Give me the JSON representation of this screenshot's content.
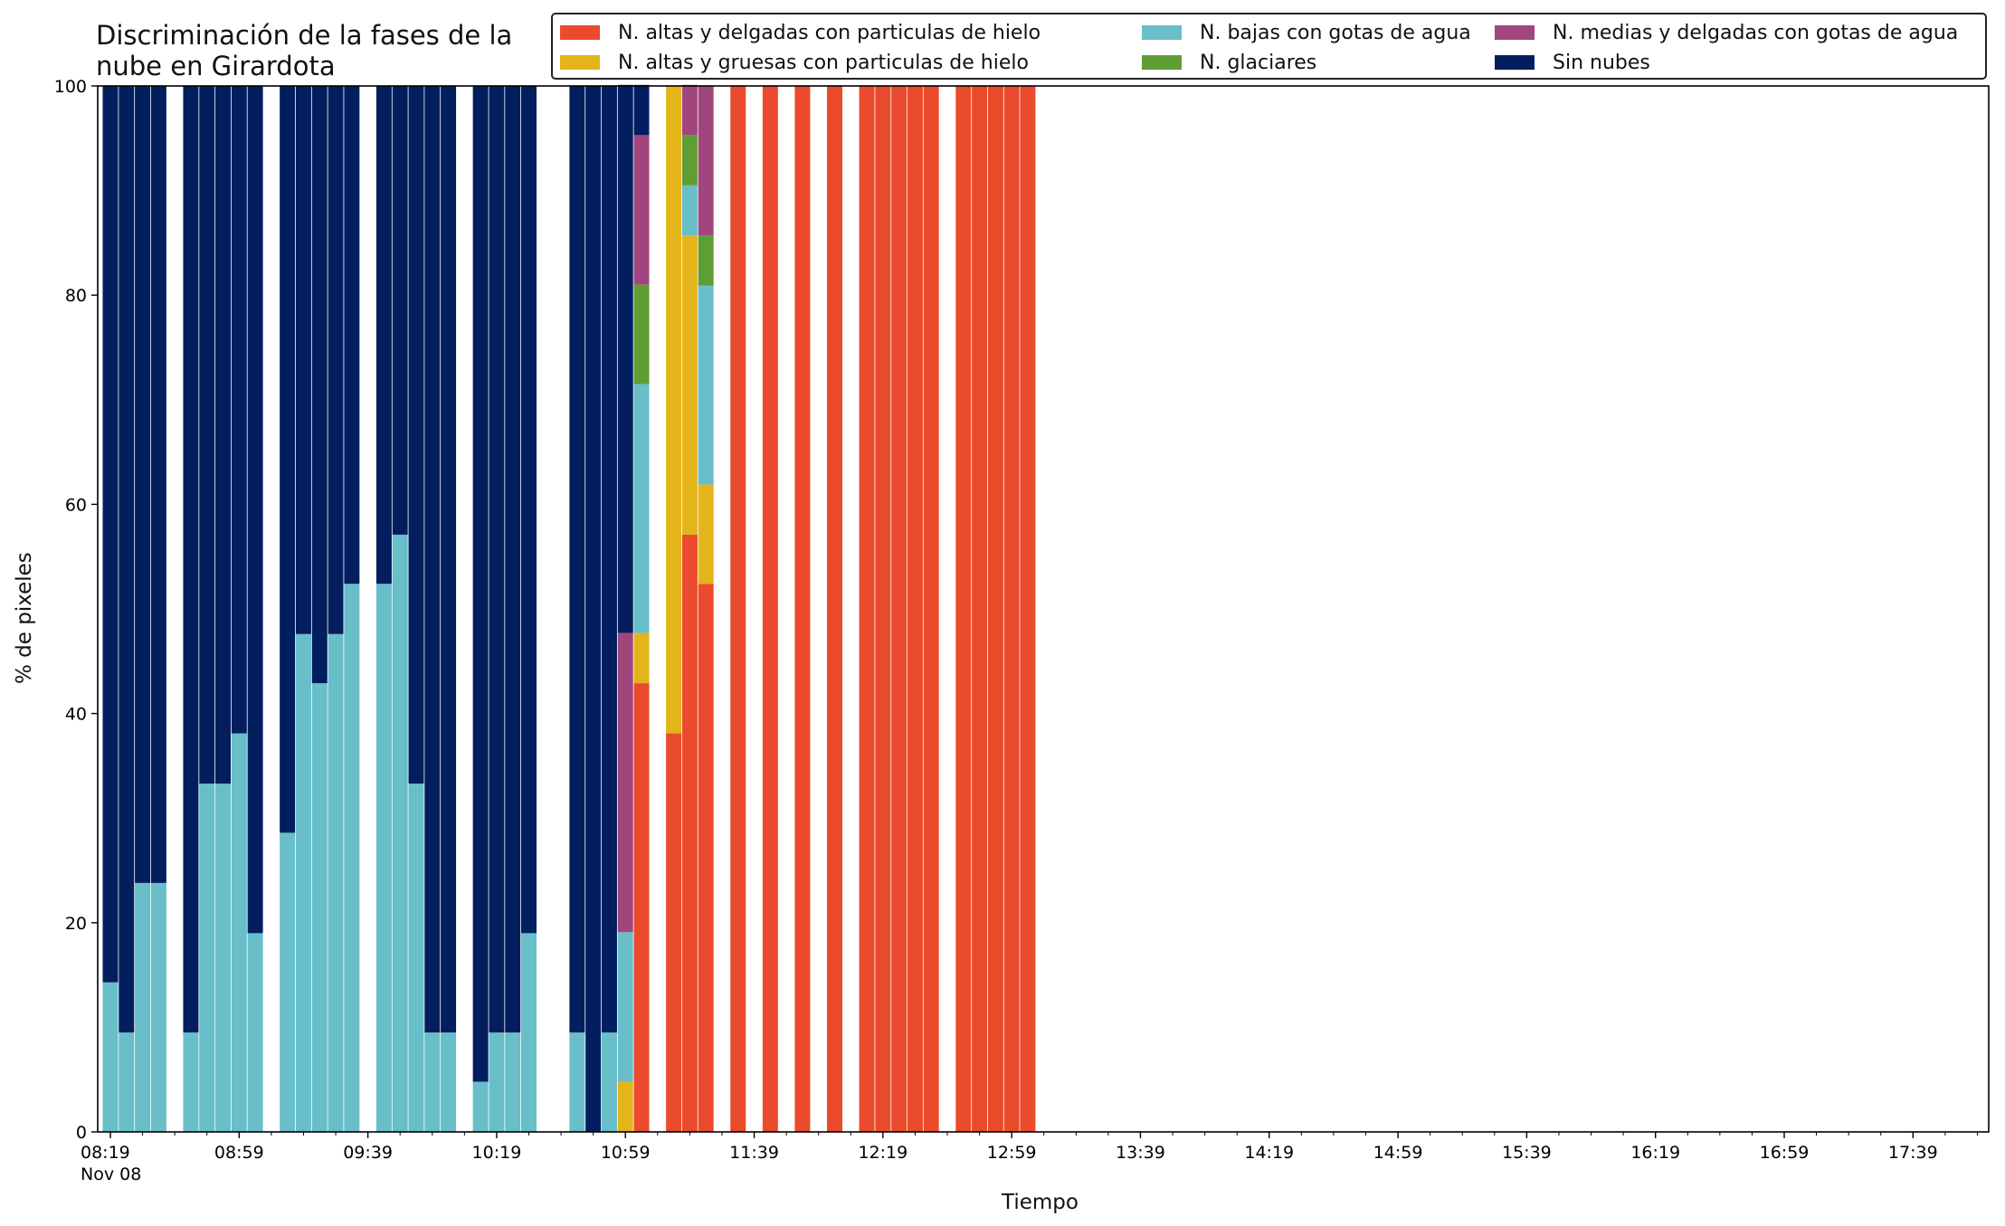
{
  "title_lines": [
    "Discriminación de la fases de la",
    "nube en Girardota"
  ],
  "colors": {
    "altas_delgadas_hielo": "#EA4B2C",
    "altas_gruesas_hielo": "#E4B41B",
    "bajas_gotas": "#68BEC9",
    "glaciares": "#5E9E32",
    "medias_delgadas_gotas": "#A0467C",
    "sin_nubes": "#031E5E"
  },
  "chart_data": {
    "type": "bar",
    "stacked": true,
    "title": "Discriminación de la fases de la nube en Girardota",
    "xlabel": "Tiempo",
    "ylabel": "% de pixeles",
    "ylim": [
      0,
      100
    ],
    "yticks": [
      0,
      20,
      40,
      60,
      80,
      100
    ],
    "legend_position": "top-right",
    "x_ticks": [
      "08:19\nNov 08",
      "08:59",
      "09:39",
      "10:19",
      "10:59",
      "11:39",
      "12:19",
      "12:59",
      "13:39",
      "14:19",
      "14:59",
      "15:39",
      "16:19",
      "16:59",
      "17:39"
    ],
    "x_range": [
      "2023-11-08 08:19",
      "2023-11-08 17:59"
    ],
    "series": [
      {
        "name": "N. altas y delgadas con particulas de hielo",
        "key": "altas_delgadas_hielo"
      },
      {
        "name": "N. altas y gruesas con particulas de hielo",
        "key": "altas_gruesas_hielo"
      },
      {
        "name": "N. bajas con gotas de agua",
        "key": "bajas_gotas"
      },
      {
        "name": "N. glaciares",
        "key": "glaciares"
      },
      {
        "name": "N. medias y delgadas con gotas de agua",
        "key": "medias_delgadas_gotas"
      },
      {
        "name": "Sin nubes",
        "key": "sin_nubes"
      }
    ],
    "bars": [
      {
        "time": "08:19",
        "values": {
          "bajas_gotas": 14.3,
          "sin_nubes": 85.7
        }
      },
      {
        "time": "08:24",
        "values": {
          "bajas_gotas": 9.5,
          "sin_nubes": 90.5
        }
      },
      {
        "time": "08:29",
        "values": {
          "bajas_gotas": 23.8,
          "sin_nubes": 76.2
        }
      },
      {
        "time": "08:34",
        "values": {
          "bajas_gotas": 23.8,
          "sin_nubes": 76.2
        }
      },
      {
        "time": "08:44",
        "values": {
          "bajas_gotas": 9.5,
          "sin_nubes": 90.5
        }
      },
      {
        "time": "08:49",
        "values": {
          "bajas_gotas": 33.3,
          "sin_nubes": 66.7
        }
      },
      {
        "time": "08:54",
        "values": {
          "bajas_gotas": 33.3,
          "sin_nubes": 66.7
        }
      },
      {
        "time": "08:59",
        "values": {
          "bajas_gotas": 38.1,
          "sin_nubes": 61.9
        }
      },
      {
        "time": "09:04",
        "values": {
          "bajas_gotas": 19.0,
          "sin_nubes": 81.0
        }
      },
      {
        "time": "09:14",
        "values": {
          "bajas_gotas": 28.6,
          "sin_nubes": 71.4
        }
      },
      {
        "time": "09:19",
        "values": {
          "bajas_gotas": 47.6,
          "sin_nubes": 52.4
        }
      },
      {
        "time": "09:24",
        "values": {
          "bajas_gotas": 42.9,
          "sin_nubes": 57.1
        }
      },
      {
        "time": "09:29",
        "values": {
          "bajas_gotas": 47.6,
          "sin_nubes": 52.4
        }
      },
      {
        "time": "09:34",
        "values": {
          "bajas_gotas": 52.4,
          "sin_nubes": 47.6
        }
      },
      {
        "time": "09:44",
        "values": {
          "bajas_gotas": 52.4,
          "sin_nubes": 47.6
        }
      },
      {
        "time": "09:49",
        "values": {
          "bajas_gotas": 57.1,
          "sin_nubes": 42.9
        }
      },
      {
        "time": "09:54",
        "values": {
          "bajas_gotas": 33.3,
          "sin_nubes": 66.7
        }
      },
      {
        "time": "09:59",
        "values": {
          "bajas_gotas": 9.5,
          "sin_nubes": 90.5
        }
      },
      {
        "time": "10:04",
        "values": {
          "bajas_gotas": 9.5,
          "sin_nubes": 90.5
        }
      },
      {
        "time": "10:14",
        "values": {
          "bajas_gotas": 4.8,
          "sin_nubes": 95.2
        }
      },
      {
        "time": "10:19",
        "values": {
          "bajas_gotas": 9.5,
          "sin_nubes": 90.5
        }
      },
      {
        "time": "10:24",
        "values": {
          "bajas_gotas": 9.5,
          "sin_nubes": 90.5
        }
      },
      {
        "time": "10:29",
        "values": {
          "bajas_gotas": 19.0,
          "sin_nubes": 81.0
        }
      },
      {
        "time": "10:44",
        "values": {
          "bajas_gotas": 9.5,
          "sin_nubes": 90.5
        }
      },
      {
        "time": "10:49",
        "values": {
          "sin_nubes": 100
        }
      },
      {
        "time": "10:54",
        "values": {
          "bajas_gotas": 9.5,
          "sin_nubes": 90.5
        }
      },
      {
        "time": "10:59",
        "values": {
          "altas_gruesas_hielo": 4.8,
          "bajas_gotas": 14.3,
          "medias_delgadas_gotas": 28.6,
          "sin_nubes": 52.4
        }
      },
      {
        "time": "11:04",
        "values": {
          "altas_delgadas_hielo": 42.9,
          "altas_gruesas_hielo": 4.8,
          "bajas_gotas": 23.8,
          "glaciares": 9.5,
          "medias_delgadas_gotas": 14.3,
          "sin_nubes": 4.8
        }
      },
      {
        "time": "11:14",
        "values": {
          "altas_delgadas_hielo": 38.1,
          "altas_gruesas_hielo": 61.9
        }
      },
      {
        "time": "11:19",
        "values": {
          "altas_delgadas_hielo": 57.1,
          "altas_gruesas_hielo": 28.6,
          "bajas_gotas": 4.8,
          "glaciares": 4.8,
          "medias_delgadas_gotas": 4.8
        }
      },
      {
        "time": "11:24",
        "values": {
          "altas_delgadas_hielo": 52.4,
          "altas_gruesas_hielo": 9.5,
          "bajas_gotas": 19.0,
          "glaciares": 4.8,
          "medias_delgadas_gotas": 14.3
        }
      },
      {
        "time": "11:34",
        "values": {
          "altas_delgadas_hielo": 100
        }
      },
      {
        "time": "11:44",
        "values": {
          "altas_delgadas_hielo": 100
        }
      },
      {
        "time": "11:54",
        "values": {
          "altas_delgadas_hielo": 100
        }
      },
      {
        "time": "12:04",
        "values": {
          "altas_delgadas_hielo": 100
        }
      },
      {
        "time": "12:14",
        "values": {
          "altas_delgadas_hielo": 100
        }
      },
      {
        "time": "12:19",
        "values": {
          "altas_delgadas_hielo": 100
        }
      },
      {
        "time": "12:24",
        "values": {
          "altas_delgadas_hielo": 100
        }
      },
      {
        "time": "12:29",
        "values": {
          "altas_delgadas_hielo": 100
        }
      },
      {
        "time": "12:34",
        "values": {
          "altas_delgadas_hielo": 100
        }
      },
      {
        "time": "12:44",
        "values": {
          "altas_delgadas_hielo": 100
        }
      },
      {
        "time": "12:49",
        "values": {
          "altas_delgadas_hielo": 100
        }
      },
      {
        "time": "12:54",
        "values": {
          "altas_delgadas_hielo": 100
        }
      },
      {
        "time": "12:59",
        "values": {
          "altas_delgadas_hielo": 100
        }
      },
      {
        "time": "13:04",
        "values": {
          "altas_delgadas_hielo": 100
        }
      }
    ]
  }
}
